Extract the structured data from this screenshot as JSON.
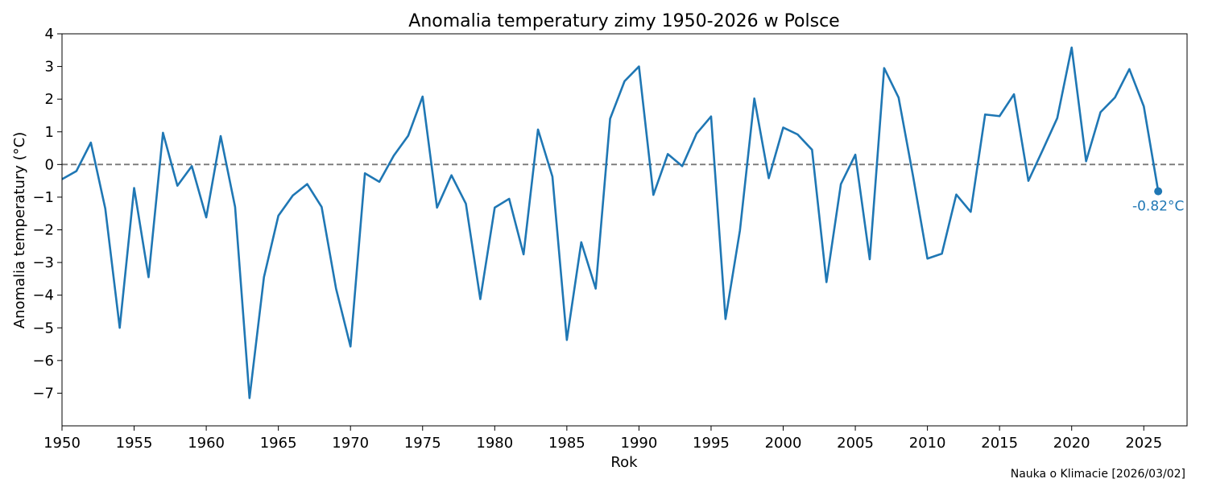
{
  "chart_data": {
    "type": "line",
    "title": "Anomalia temperatury zimy 1950-2026 w Polsce",
    "xlabel": "Rok",
    "ylabel": "Anomalia temperatury (°C)",
    "xlim": [
      1950,
      2028
    ],
    "ylim": [
      -8,
      4
    ],
    "xticks": [
      1950,
      1955,
      1960,
      1965,
      1970,
      1975,
      1980,
      1985,
      1990,
      1995,
      2000,
      2005,
      2010,
      2015,
      2020,
      2025
    ],
    "yticks": [
      4,
      3,
      2,
      1,
      0,
      -1,
      -2,
      -3,
      -4,
      -5,
      -6,
      -7
    ],
    "ytick_labels": [
      "4",
      "3",
      "2",
      "1",
      "0",
      "−1",
      "−2",
      "−3",
      "−4",
      "−5",
      "−6",
      "−7"
    ],
    "reference_line": 0,
    "series": [
      {
        "name": "Anomalia temperatury",
        "color": "#1f77b4",
        "x": [
          1950,
          1951,
          1952,
          1953,
          1954,
          1955,
          1956,
          1957,
          1958,
          1959,
          1960,
          1961,
          1962,
          1963,
          1964,
          1965,
          1966,
          1967,
          1968,
          1969,
          1970,
          1971,
          1972,
          1973,
          1974,
          1975,
          1976,
          1977,
          1978,
          1979,
          1980,
          1981,
          1982,
          1983,
          1984,
          1985,
          1986,
          1987,
          1988,
          1989,
          1990,
          1991,
          1992,
          1993,
          1994,
          1995,
          1996,
          1997,
          1998,
          1999,
          2000,
          2001,
          2002,
          2003,
          2004,
          2005,
          2006,
          2007,
          2008,
          2009,
          2010,
          2011,
          2012,
          2013,
          2014,
          2015,
          2016,
          2017,
          2018,
          2019,
          2020,
          2021,
          2022,
          2023,
          2024,
          2025,
          2026
        ],
        "values": [
          -0.45,
          -0.2,
          0.67,
          -1.35,
          -5.0,
          -0.72,
          -3.45,
          0.97,
          -0.65,
          -0.05,
          -1.62,
          0.87,
          -1.3,
          -7.15,
          -3.45,
          -1.57,
          -0.95,
          -0.6,
          -1.3,
          -3.8,
          -5.57,
          -0.27,
          -0.53,
          0.27,
          0.88,
          2.08,
          -1.32,
          -0.33,
          -1.2,
          -4.12,
          -1.32,
          -1.05,
          -2.75,
          1.07,
          -0.37,
          -5.37,
          -2.38,
          -3.8,
          1.4,
          2.55,
          3.0,
          -0.93,
          0.32,
          -0.05,
          0.95,
          1.47,
          -4.73,
          -2.02,
          2.02,
          -0.42,
          1.13,
          0.92,
          0.45,
          -3.6,
          -0.6,
          0.3,
          -2.9,
          2.95,
          2.05,
          -0.35,
          -2.88,
          -2.73,
          -0.92,
          -1.45,
          1.53,
          1.48,
          2.15,
          -0.5,
          0.45,
          1.42,
          3.58,
          0.1,
          1.6,
          2.05,
          2.92,
          1.78,
          -0.82
        ]
      }
    ],
    "last_point_label": "-0.82°C"
  },
  "source_note": "Nauka o Klimacie [2026/03/02]"
}
